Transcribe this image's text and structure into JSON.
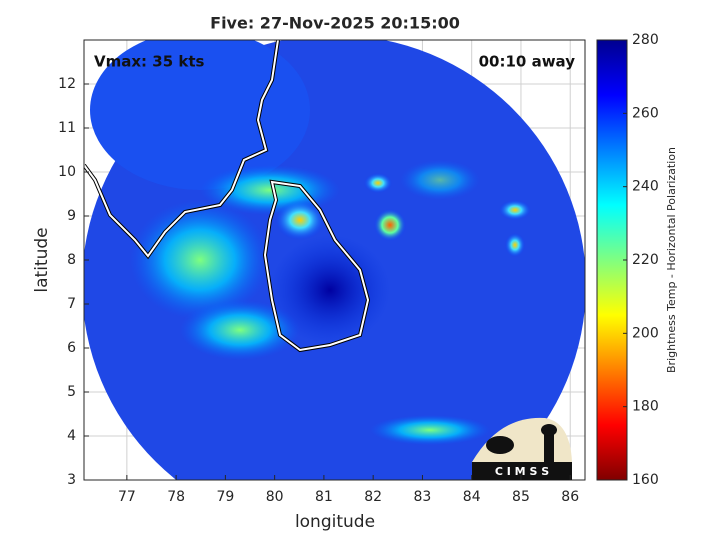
{
  "chart_data": {
    "type": "image-map",
    "title": "Five: 27-Nov-2025 20:15:00",
    "xlabel": "longitude",
    "ylabel": "latitude",
    "annotations": [
      "Vmax: 35 kts",
      "00:10 away"
    ],
    "xlim": [
      76.13,
      86.3
    ],
    "xticks": [
      77,
      78,
      79,
      80,
      81,
      82,
      83,
      84,
      85,
      86
    ],
    "ylim": [
      3,
      13
    ],
    "yticks": [
      3,
      4,
      5,
      6,
      7,
      8,
      9,
      10,
      11,
      12
    ],
    "grid": true,
    "colorbar": {
      "label": "Brightness Temp - Horizontal Polarization",
      "colormap": "jet",
      "lim": [
        160,
        280
      ],
      "ticks": [
        160,
        180,
        200,
        220,
        240,
        260,
        280
      ]
    },
    "logo": "C I M S S"
  }
}
